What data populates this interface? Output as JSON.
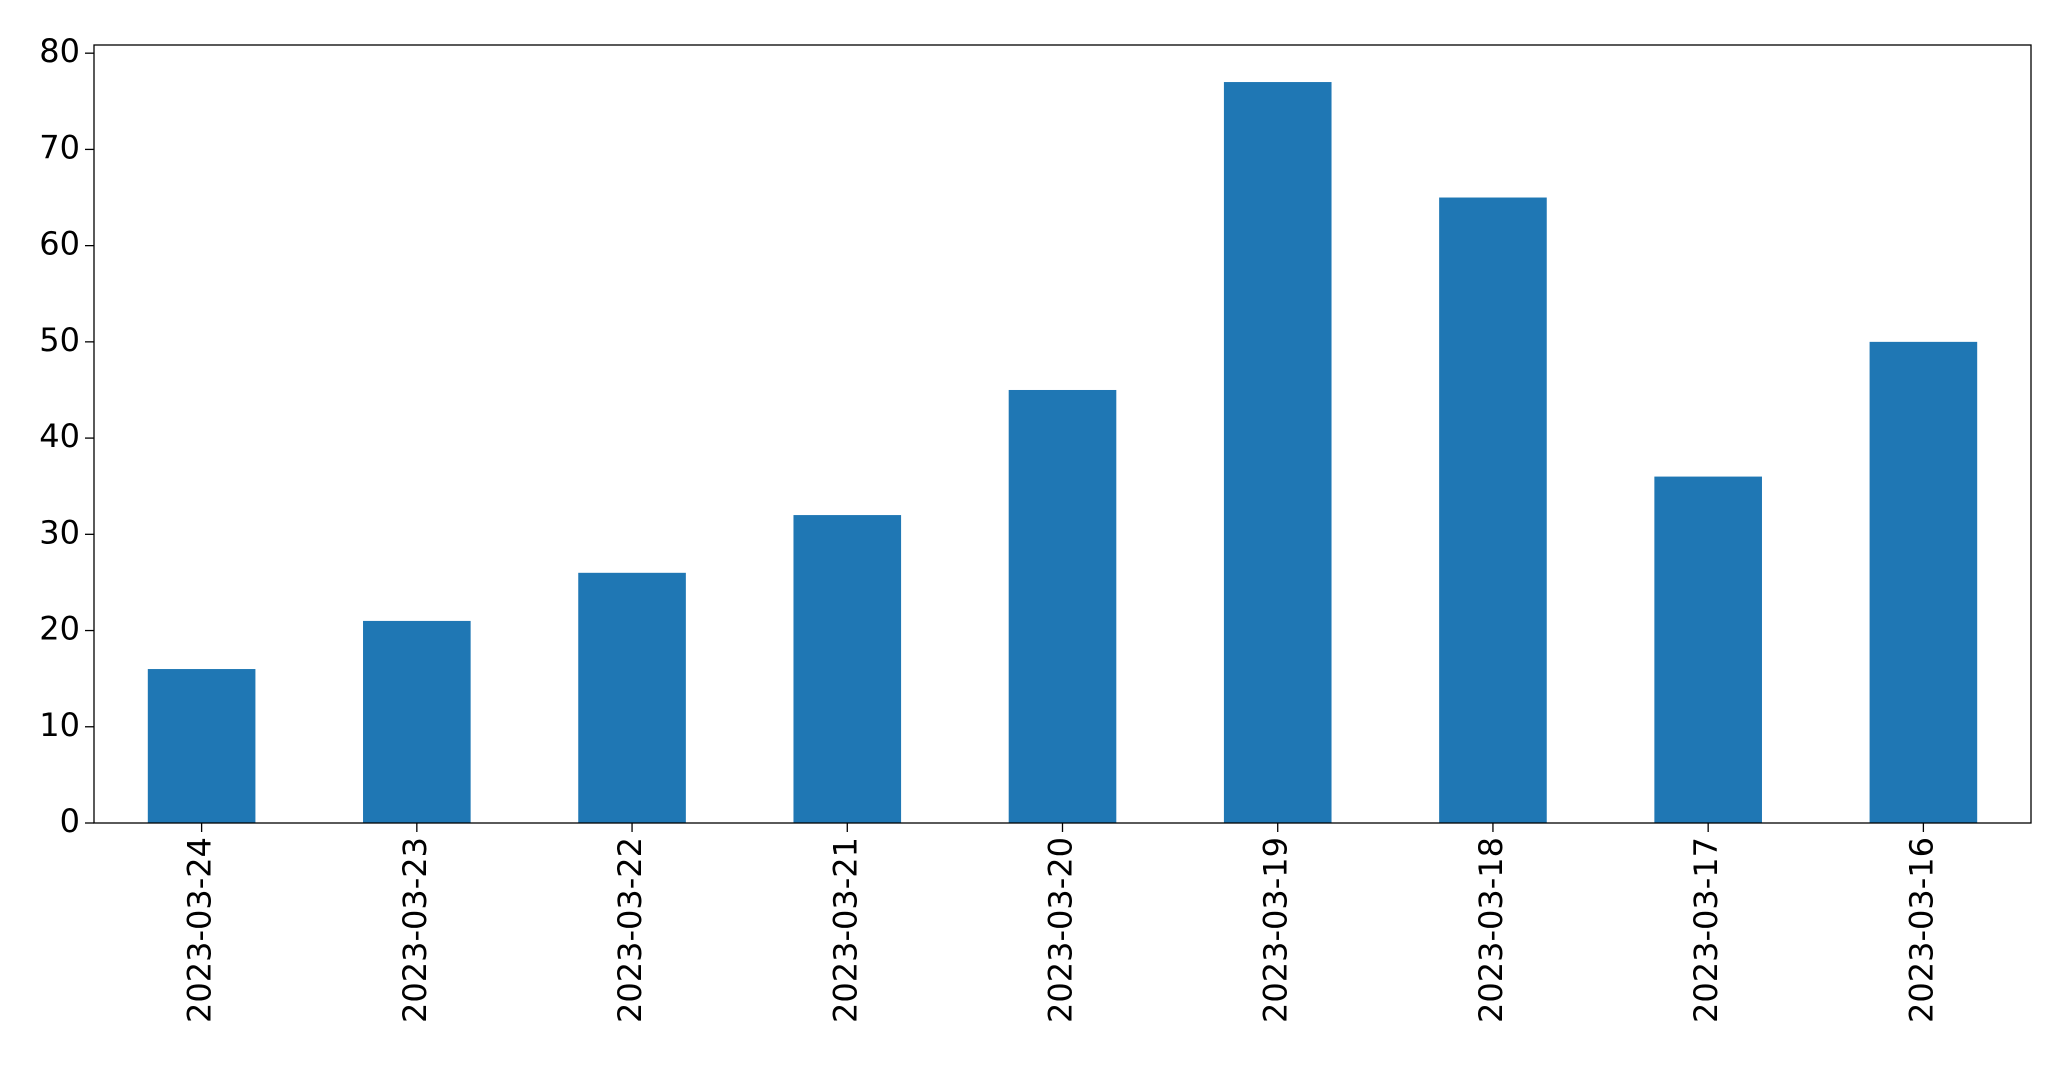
{
  "chart_data": {
    "type": "bar",
    "categories": [
      "2023-03-24",
      "2023-03-23",
      "2023-03-22",
      "2023-03-21",
      "2023-03-20",
      "2023-03-19",
      "2023-03-18",
      "2023-03-17",
      "2023-03-16"
    ],
    "values": [
      16,
      21,
      26,
      32,
      45,
      77,
      65,
      36,
      50
    ],
    "color": "#1f77b4",
    "ylim": [
      0,
      80.85
    ],
    "yticks": [
      0,
      10,
      20,
      30,
      40,
      50,
      60,
      70,
      80
    ],
    "grid": false
  }
}
